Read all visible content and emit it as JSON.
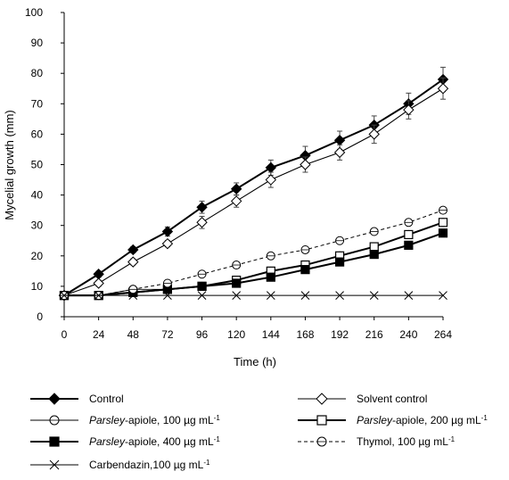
{
  "chart_data": {
    "type": "line",
    "xlabel": "Time (h)",
    "ylabel": "Mycelial growth (mm)",
    "x": [
      0,
      24,
      48,
      72,
      96,
      120,
      144,
      168,
      192,
      216,
      240,
      264
    ],
    "xlim": [
      0,
      264
    ],
    "ylim": [
      0,
      100
    ],
    "x_ticks": [
      "0",
      "24",
      "48",
      "72",
      "96",
      "120",
      "144",
      "168",
      "192",
      "216",
      "240",
      "264"
    ],
    "y_ticks": [
      "0",
      "10",
      "20",
      "30",
      "40",
      "50",
      "60",
      "70",
      "80",
      "90",
      "100"
    ],
    "grid": false,
    "legend_position": "bottom",
    "series": [
      {
        "key": "control",
        "name": "Control",
        "marker": "diamond-filled",
        "line": "solid-thick",
        "values": [
          7,
          14,
          22,
          28,
          36,
          42,
          49,
          53,
          58,
          63,
          70,
          78
        ],
        "errors": [
          0,
          1,
          1,
          1.5,
          2,
          2,
          2.5,
          3,
          3,
          3,
          3.5,
          4
        ]
      },
      {
        "key": "solvent",
        "name": "Solvent control",
        "marker": "diamond-open",
        "line": "solid",
        "values": [
          7,
          11,
          18,
          24,
          31,
          38,
          45,
          50,
          54,
          60,
          68,
          75
        ],
        "errors": [
          0,
          1,
          1,
          1,
          2,
          2,
          2.5,
          2.5,
          2.5,
          3,
          3,
          3.5
        ]
      },
      {
        "key": "pa100",
        "name": "-apiole, 100 µg mL",
        "name_prefix": "Parsley",
        "name_sup": "-1",
        "marker": "circle-open",
        "line": "solid-thin",
        "values": [
          7,
          7,
          9,
          9,
          10,
          12,
          15,
          17,
          20,
          23,
          27,
          31
        ],
        "errors": []
      },
      {
        "key": "pa200",
        "name": "-apiole, 200 µg mL",
        "name_prefix": "Parsley",
        "name_sup": "-1",
        "marker": "square-open",
        "line": "solid-thick",
        "values": [
          7,
          7,
          8,
          9,
          10,
          12,
          15,
          17,
          20,
          23,
          27,
          31
        ],
        "errors": []
      },
      {
        "key": "pa400",
        "name": "-apiole, 400 µg mL",
        "name_prefix": "Parsley",
        "name_sup": "-1",
        "marker": "square-filled",
        "line": "solid-thick",
        "values": [
          7,
          7,
          8,
          9,
          10,
          11,
          13,
          15.5,
          18,
          20.5,
          23.5,
          27.5
        ],
        "errors": []
      },
      {
        "key": "thymol",
        "name": "Thymol, 100 µg mL",
        "name_sup": "-1",
        "marker": "circle-open",
        "line": "dashed",
        "values": [
          7,
          7,
          9,
          11,
          14,
          17,
          20,
          22,
          25,
          28,
          31,
          35
        ],
        "errors": []
      },
      {
        "key": "carb",
        "name": "Carbendazin,100 µg mL",
        "name_sup": "-1",
        "marker": "x",
        "line": "solid",
        "values": [
          7,
          7,
          7,
          7,
          7,
          7,
          7,
          7,
          7,
          7,
          7,
          7
        ],
        "errors": []
      }
    ]
  }
}
